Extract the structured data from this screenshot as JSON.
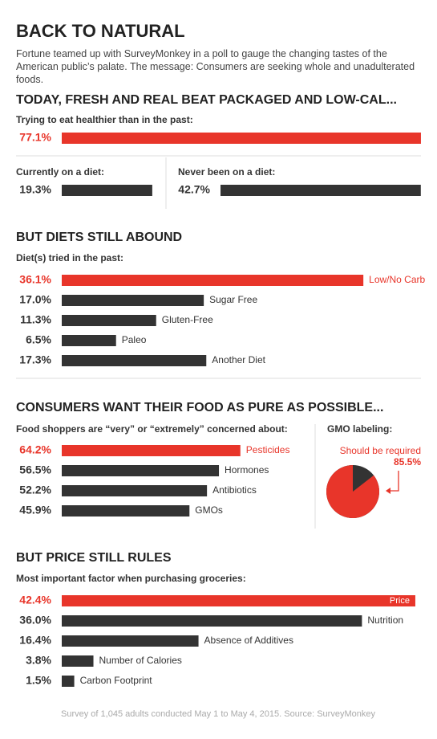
{
  "title": "BACK TO NATURAL",
  "intro": "Fortune teamed up with SurveyMonkey in a poll to gauge the changing tastes of the American public’s palate. The message: Consumers are seeking whole and unadulterated foods.",
  "footer": "Survey of 1,045 adults conducted May 1 to May 4, 2015. Source: SurveyMonkey",
  "chart_data": [
    {
      "type": "bar",
      "heading": "TODAY, FRESH AND REAL BEAT PACKAGED AND LOW-CAL...",
      "subtitle": "Trying to eat healthier than in the past:",
      "values": [
        77.1
      ],
      "value_labels": [
        "77.1%"
      ],
      "colors": [
        "#e8352a"
      ]
    },
    {
      "type": "bar",
      "subtitle": "Currently on a diet:",
      "values": [
        19.3
      ],
      "value_labels": [
        "19.3%"
      ],
      "colors": [
        "#333333"
      ]
    },
    {
      "type": "bar",
      "subtitle": "Never been on a diet:",
      "values": [
        42.7
      ],
      "value_labels": [
        "42.7%"
      ],
      "colors": [
        "#333333"
      ]
    },
    {
      "type": "bar",
      "heading": "BUT DIETS STILL ABOUND",
      "subtitle": "Diet(s) tried in the past:",
      "categories": [
        "Low/No Carb",
        "Sugar Free",
        "Gluten-Free",
        "Paleo",
        "Another Diet"
      ],
      "values": [
        36.1,
        17.0,
        11.3,
        6.5,
        17.3
      ],
      "value_labels": [
        "36.1%",
        "17.0%",
        "11.3%",
        "6.5%",
        "17.3%"
      ],
      "colors": [
        "#e8352a",
        "#333333",
        "#333333",
        "#333333",
        "#333333"
      ]
    },
    {
      "type": "bar",
      "heading": "CONSUMERS WANT THEIR FOOD AS PURE AS POSSIBLE...",
      "subtitle": "Food shoppers are “very” or “extremely” concerned about:",
      "categories": [
        "Pesticides",
        "Hormones",
        "Antibiotics",
        "GMOs"
      ],
      "values": [
        64.2,
        56.5,
        52.2,
        45.9
      ],
      "value_labels": [
        "64.2%",
        "56.5%",
        "52.2%",
        "45.9%"
      ],
      "colors": [
        "#e8352a",
        "#333333",
        "#333333",
        "#333333"
      ]
    },
    {
      "type": "pie",
      "subtitle": "GMO labeling:",
      "categories": [
        "Should be required"
      ],
      "values": [
        85.5
      ],
      "value_labels": [
        "85.5%"
      ],
      "colors": [
        "#e8352a"
      ],
      "rest_color": "#333333"
    },
    {
      "type": "bar",
      "heading": "BUT PRICE STILL RULES",
      "subtitle": "Most important factor when purchasing groceries:",
      "categories": [
        "Price",
        "Nutrition",
        "Absence of Additives",
        "Number of Calories",
        "Carbon Footprint"
      ],
      "values": [
        42.4,
        36.0,
        16.4,
        3.8,
        1.5
      ],
      "value_labels": [
        "42.4%",
        "36.0%",
        "16.4%",
        "3.8%",
        "1.5%"
      ],
      "colors": [
        "#e8352a",
        "#333333",
        "#333333",
        "#333333",
        "#333333"
      ]
    }
  ]
}
